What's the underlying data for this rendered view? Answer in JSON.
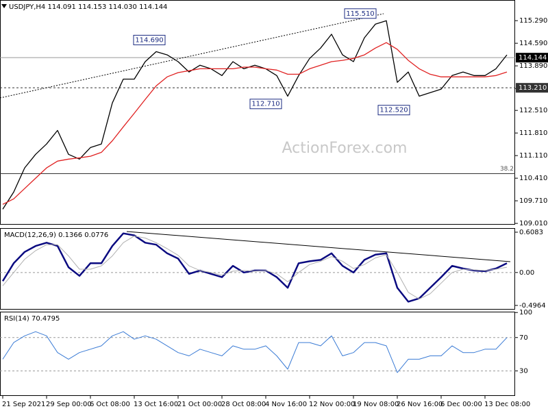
{
  "chart_data": [
    {
      "type": "line",
      "title": "USDJPY,H4  114.091 114.153 114.030 114.144",
      "watermark": "ActionForex.com",
      "xlim": [
        -0.25,
        46.75
      ],
      "ylim": [
        108.97,
        115.93
      ],
      "yticks": [
        {
          "value": 115.29,
          "label": "115.290"
        },
        {
          "value": 114.59,
          "label": "114.590"
        },
        {
          "value": 113.89,
          "label": "113.890"
        },
        {
          "value": 113.19,
          "label": "113.190"
        },
        {
          "value": 112.51,
          "label": "112.510"
        },
        {
          "value": 111.81,
          "label": "111.810"
        },
        {
          "value": 111.11,
          "label": "111.110"
        },
        {
          "value": 110.41,
          "label": "110.410"
        },
        {
          "value": 109.71,
          "label": "109.710"
        },
        {
          "value": 109.01,
          "label": "109.010"
        }
      ],
      "series": [
        {
          "color": "#000000",
          "values": [
            109.45,
            109.98,
            110.73,
            111.15,
            111.47,
            111.89,
            111.15,
            111.0,
            111.36,
            111.47,
            112.74,
            113.48,
            113.48,
            114.02,
            114.33,
            114.23,
            114.02,
            113.7,
            113.91,
            113.8,
            113.59,
            114.02,
            113.8,
            113.91,
            113.8,
            113.59,
            112.95,
            113.59,
            114.12,
            114.44,
            114.87,
            114.23,
            114.02,
            114.76,
            115.18,
            115.29,
            113.38,
            113.7,
            112.95,
            113.06,
            113.17,
            113.59,
            113.7,
            113.59,
            113.59,
            113.8,
            114.23
          ]
        },
        {
          "color": "#e02020",
          "values": [
            109.6,
            109.77,
            110.09,
            110.41,
            110.73,
            110.94,
            111.0,
            111.04,
            111.09,
            111.21,
            111.57,
            112.0,
            112.42,
            112.85,
            113.27,
            113.55,
            113.68,
            113.74,
            113.8,
            113.8,
            113.8,
            113.8,
            113.85,
            113.85,
            113.8,
            113.76,
            113.63,
            113.63,
            113.8,
            113.91,
            114.02,
            114.06,
            114.12,
            114.23,
            114.44,
            114.61,
            114.4,
            114.06,
            113.8,
            113.63,
            113.55,
            113.55,
            113.55,
            113.55,
            113.55,
            113.59,
            113.7
          ]
        }
      ],
      "price_tags": [
        {
          "value": 114.144,
          "label": "114.144",
          "line": "solid",
          "color": "#000000"
        },
        {
          "value": 113.21,
          "label": "113.210",
          "line": "dashed",
          "color": "#333333"
        }
      ],
      "levels": [
        {
          "value": 110.55,
          "label": "38.2",
          "line": "solid"
        }
      ],
      "annotations": [
        {
          "value": 115.51,
          "label": "115.510"
        },
        {
          "value": 114.69,
          "label": "114.690"
        },
        {
          "value": 112.71,
          "label": "112.710"
        },
        {
          "value": 112.52,
          "label": "112.520"
        }
      ]
    },
    {
      "type": "line",
      "title": "MACD(12,26,9) 0.1366 0.0776",
      "xlim": [
        -0.25,
        46.75
      ],
      "ylim": [
        -0.56,
        0.67
      ],
      "yticks": [
        0.6083,
        {
          "value": 0,
          "label": "0.00"
        },
        -0.4964
      ],
      "series": [
        {
          "color": "#0a0a80",
          "width": 2.5,
          "values": [
            -0.13,
            0.14,
            0.31,
            0.4,
            0.45,
            0.4,
            0.08,
            -0.05,
            0.14,
            0.14,
            0.4,
            0.59,
            0.56,
            0.45,
            0.42,
            0.29,
            0.21,
            -0.02,
            0.03,
            -0.02,
            -0.07,
            0.1,
            0.0,
            0.03,
            0.03,
            -0.07,
            -0.23,
            0.14,
            0.17,
            0.19,
            0.29,
            0.1,
            0.0,
            0.19,
            0.27,
            0.29,
            -0.23,
            -0.44,
            -0.39,
            -0.23,
            -0.07,
            0.1,
            0.06,
            0.03,
            0.02,
            0.06,
            0.14
          ]
        },
        {
          "color": "#b0b0b0",
          "width": 1,
          "values": [
            -0.2,
            0.0,
            0.2,
            0.33,
            0.42,
            0.42,
            0.25,
            0.05,
            0.05,
            0.1,
            0.25,
            0.45,
            0.55,
            0.52,
            0.45,
            0.36,
            0.26,
            0.1,
            0.03,
            0.0,
            -0.04,
            0.02,
            0.03,
            0.02,
            0.03,
            -0.02,
            -0.14,
            0.0,
            0.12,
            0.17,
            0.24,
            0.17,
            0.06,
            0.12,
            0.22,
            0.27,
            0.0,
            -0.3,
            -0.4,
            -0.32,
            -0.16,
            0.0,
            0.05,
            0.04,
            0.03,
            0.05,
            0.08
          ]
        }
      ],
      "levels": [
        {
          "value": 0,
          "line": "dashed"
        }
      ]
    },
    {
      "type": "line",
      "title": "RSI(14) 70.4795",
      "xlim": [
        -0.25,
        46.75
      ],
      "ylim": [
        0,
        101
      ],
      "yticks": [
        100,
        70,
        30
      ],
      "xticks": [
        {
          "value": 0,
          "label": "21 Sep 2021"
        },
        {
          "value": 4,
          "label": "29 Sep 00:00"
        },
        {
          "value": 8,
          "label": "6 Oct 08:00"
        },
        {
          "value": 12,
          "label": "13 Oct 16:00"
        },
        {
          "value": 16,
          "label": "21 Oct 00:00"
        },
        {
          "value": 20,
          "label": "28 Oct 08:00"
        },
        {
          "value": 24,
          "label": "4 Nov 16:00"
        },
        {
          "value": 28,
          "label": "12 Nov 00:00"
        },
        {
          "value": 32,
          "label": "19 Nov 08:00"
        },
        {
          "value": 36,
          "label": "26 Nov 16:00"
        },
        {
          "value": 40,
          "label": "6 Dec 00:00"
        },
        {
          "value": 44,
          "label": "13 Dec 08:00"
        }
      ],
      "series": [
        {
          "color": "#3a7bd5",
          "width": 1,
          "values": [
            44,
            64,
            72,
            77,
            72,
            52,
            44,
            52,
            56,
            60,
            72,
            77,
            68,
            72,
            68,
            60,
            52,
            48,
            56,
            52,
            48,
            60,
            56,
            56,
            60,
            48,
            32,
            64,
            64,
            60,
            72,
            48,
            52,
            64,
            64,
            60,
            28,
            44,
            44,
            48,
            48,
            60,
            52,
            52,
            56,
            56,
            70
          ]
        }
      ],
      "levels": [
        {
          "value": 70,
          "line": "dashed"
        },
        {
          "value": 30,
          "line": "dashed"
        }
      ]
    }
  ]
}
